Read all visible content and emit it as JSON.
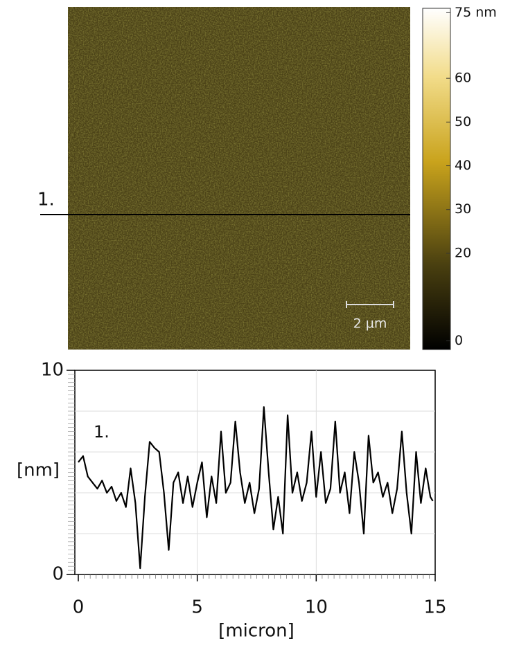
{
  "chart_data": [
    {
      "type": "image",
      "line_label": "1.",
      "scale_bar_label": "2 µm",
      "colorbar_lim": [
        -2,
        76
      ],
      "colorbar_ticks": [
        {
          "value": 75,
          "label": "75 nm"
        },
        60,
        50,
        40,
        30,
        20,
        0
      ]
    },
    {
      "type": "line",
      "annotation": "1.",
      "xlabel": "[micron]",
      "ylabel": "[nm]",
      "xlim": [
        0,
        15
      ],
      "ylim": [
        0,
        10
      ],
      "xticks": [
        0,
        5,
        10,
        15
      ],
      "yticks": [
        0,
        10
      ],
      "ygrid": [
        2,
        4,
        6,
        8
      ],
      "xgrid": [
        5,
        10
      ],
      "series": [
        {
          "color": "#000000",
          "x": [
            0,
            0.2,
            0.4,
            0.6,
            0.8,
            1.0,
            1.2,
            1.4,
            1.6,
            1.8,
            2.0,
            2.2,
            2.4,
            2.6,
            2.8,
            3.0,
            3.2,
            3.4,
            3.6,
            3.8,
            4.0,
            4.2,
            4.4,
            4.6,
            4.8,
            5.0,
            5.2,
            5.4,
            5.6,
            5.8,
            6.0,
            6.2,
            6.4,
            6.6,
            6.8,
            7.0,
            7.2,
            7.4,
            7.6,
            7.8,
            8.0,
            8.2,
            8.4,
            8.6,
            8.8,
            9.0,
            9.2,
            9.4,
            9.6,
            9.8,
            10.0,
            10.2,
            10.4,
            10.6,
            10.8,
            11.0,
            11.2,
            11.4,
            11.6,
            11.8,
            12.0,
            12.2,
            12.4,
            12.6,
            12.8,
            13.0,
            13.2,
            13.4,
            13.6,
            13.8,
            14.0,
            14.2,
            14.4,
            14.6,
            14.8,
            14.9
          ],
          "values": [
            5.5,
            5.8,
            4.8,
            4.5,
            4.2,
            4.6,
            4.0,
            4.3,
            3.6,
            4.0,
            3.3,
            5.2,
            3.5,
            0.3,
            3.8,
            6.5,
            6.2,
            6.0,
            4.0,
            1.2,
            4.5,
            5.0,
            3.5,
            4.8,
            3.3,
            4.5,
            5.5,
            2.8,
            4.8,
            3.5,
            7.0,
            4.0,
            4.5,
            7.5,
            5.0,
            3.5,
            4.5,
            3.0,
            4.2,
            8.2,
            5.0,
            2.2,
            3.8,
            2.0,
            7.8,
            4.0,
            5.0,
            3.6,
            4.5,
            7.0,
            3.8,
            6.0,
            3.5,
            4.2,
            7.5,
            4.0,
            5.0,
            3.0,
            6.0,
            4.5,
            2.0,
            6.8,
            4.5,
            5.0,
            3.8,
            4.5,
            3.0,
            4.2,
            7.0,
            4.0,
            2.0,
            6.0,
            3.5,
            5.2,
            3.8,
            3.6
          ]
        }
      ]
    }
  ]
}
